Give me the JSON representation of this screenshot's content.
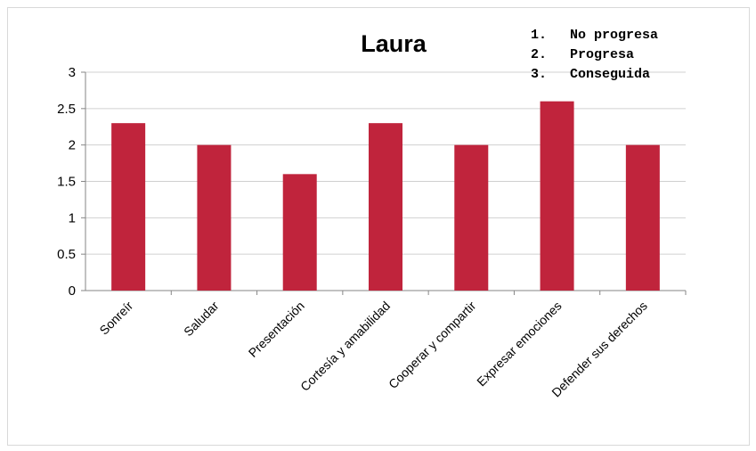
{
  "chart_data": {
    "type": "bar",
    "title": "Laura",
    "categories": [
      "Sonreír",
      "Saludar",
      "Presentación",
      "Cortesía y amabilidad",
      "Cooperar y compartir",
      "Expresar emociones",
      "Defender sus derechos"
    ],
    "values": [
      2.3,
      2.0,
      1.6,
      2.3,
      2.0,
      2.6,
      2.0
    ],
    "ylim": [
      0,
      3
    ],
    "yticks": [
      "0",
      "0.5",
      "1",
      "1.5",
      "2",
      "2.5",
      "3"
    ],
    "xlabel": "",
    "ylabel": "",
    "grid": true,
    "bar_color": "#c0243c",
    "legend": {
      "position": "top-right",
      "items": [
        {
          "number": "1.",
          "label": "No progresa"
        },
        {
          "number": "2.",
          "label": "Progresa"
        },
        {
          "number": "3.",
          "label": "Conseguida"
        }
      ]
    }
  }
}
